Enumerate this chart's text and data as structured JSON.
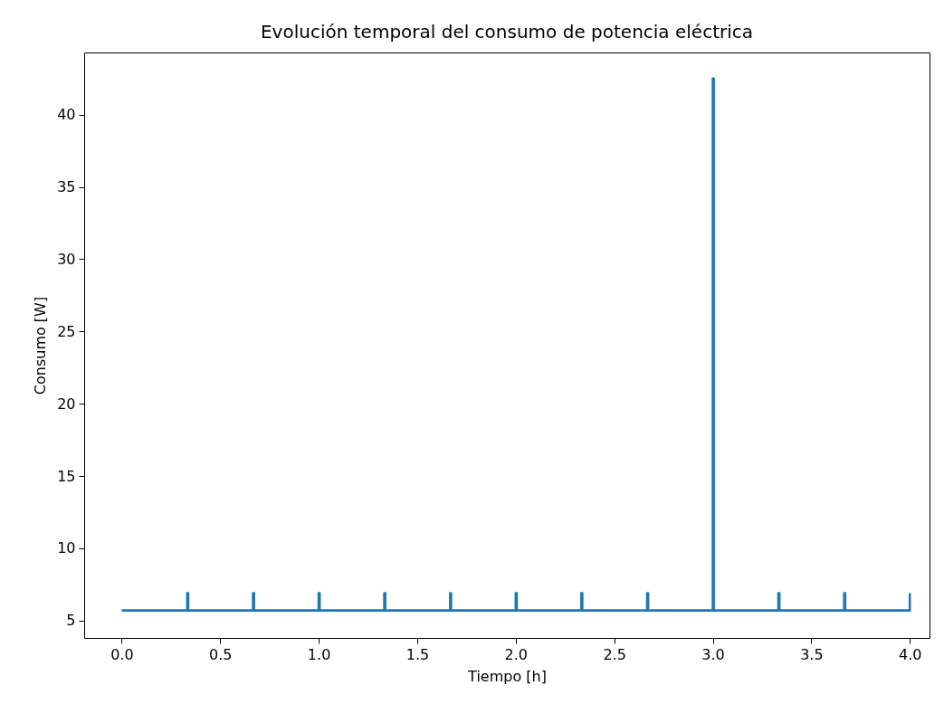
{
  "chart_data": {
    "type": "line",
    "title": "Evolución temporal del consumo de potencia eléctrica",
    "xlabel": "Tiempo [h]",
    "ylabel": "Consumo [W]",
    "series": [
      {
        "color": "#1f77b4",
        "x": [
          0,
          0.333,
          0.333,
          0.338,
          0.338,
          0.667,
          0.667,
          0.672,
          0.672,
          1.0,
          1.0,
          1.005,
          1.005,
          1.333,
          1.333,
          1.338,
          1.338,
          1.667,
          1.667,
          1.672,
          1.672,
          2.0,
          2.0,
          2.005,
          2.005,
          2.333,
          2.333,
          2.338,
          2.338,
          2.667,
          2.667,
          2.672,
          2.672,
          3.0,
          3.0,
          3.005,
          3.005,
          3.333,
          3.333,
          3.338,
          3.338,
          3.667,
          3.667,
          3.672,
          3.672,
          4.0,
          4.0
        ],
        "values": [
          5.7,
          5.7,
          6.9,
          6.9,
          5.7,
          5.7,
          6.9,
          6.9,
          5.7,
          5.7,
          6.9,
          6.9,
          5.7,
          5.7,
          6.9,
          6.9,
          5.7,
          5.7,
          6.9,
          6.9,
          5.7,
          5.7,
          6.9,
          6.9,
          5.7,
          5.7,
          6.9,
          6.9,
          5.7,
          5.7,
          6.9,
          6.9,
          5.7,
          5.7,
          42.5,
          42.5,
          5.7,
          5.7,
          6.9,
          6.9,
          5.7,
          5.7,
          6.9,
          6.9,
          5.7,
          5.7,
          6.9
        ]
      }
    ],
    "xlim": [
      -0.19,
      4.1
    ],
    "ylim": [
      3.8,
      44.3
    ],
    "xticks": [
      {
        "value": 0,
        "label": "0.0"
      },
      0.5,
      {
        "value": 1,
        "label": "1.0"
      },
      1.5,
      {
        "value": 2,
        "label": "2.0"
      },
      2.5,
      {
        "value": 3,
        "label": "3.0"
      },
      3.5,
      {
        "value": 4,
        "label": "4.0"
      }
    ],
    "yticks": [
      5,
      10,
      15,
      20,
      25,
      30,
      35,
      40
    ],
    "grid": false,
    "marker": "none",
    "line_style": "solid"
  }
}
